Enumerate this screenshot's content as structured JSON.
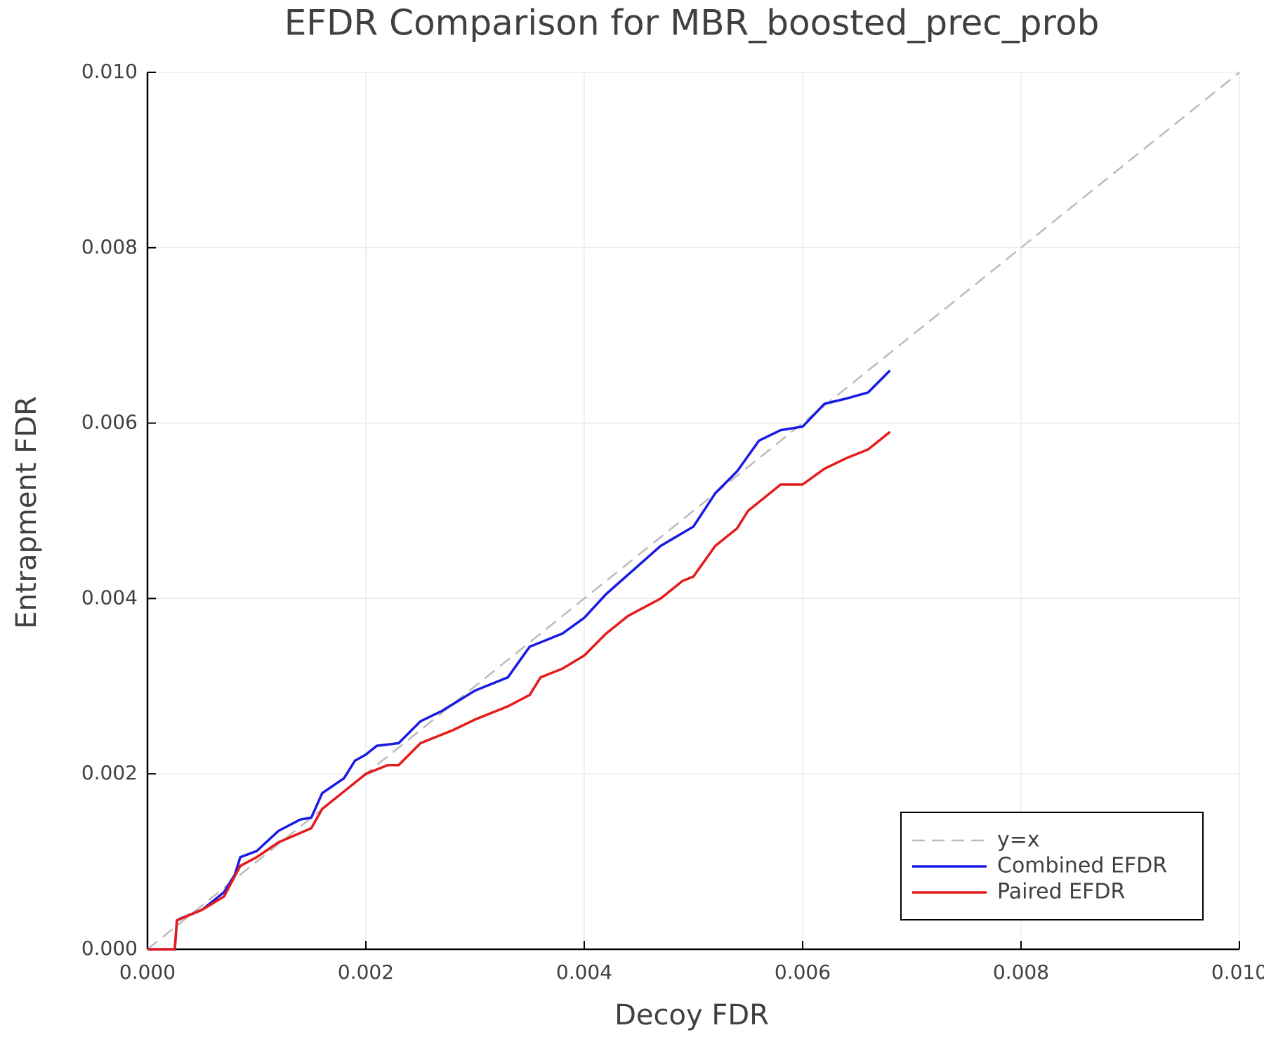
{
  "chart_data": {
    "type": "line",
    "title": "EFDR Comparison for MBR_boosted_prec_prob",
    "x_label": "Decoy FDR",
    "y_label": "Entrapment FDR",
    "xlim": [
      0,
      0.01
    ],
    "ylim": [
      0,
      0.01
    ],
    "xticks": [
      {
        "value": 0,
        "label": "0.000"
      },
      {
        "value": 0.002,
        "label": "0.002"
      },
      {
        "value": 0.004,
        "label": "0.004"
      },
      {
        "value": 0.006,
        "label": "0.006"
      },
      {
        "value": 0.008,
        "label": "0.008"
      },
      {
        "value": 0.01,
        "label": "0.010"
      }
    ],
    "yticks": [
      {
        "value": 0,
        "label": "0.000"
      },
      {
        "value": 0.002,
        "label": "0.002"
      },
      {
        "value": 0.004,
        "label": "0.004"
      },
      {
        "value": 0.006,
        "label": "0.006"
      },
      {
        "value": 0.008,
        "label": "0.008"
      },
      {
        "value": 0.01,
        "label": "0.010"
      }
    ],
    "grid": true,
    "legend": "lower right",
    "series": [
      {
        "name": "y=x",
        "color": "#bbbbbb",
        "dashed": true,
        "x": [
          0,
          0.01
        ],
        "values": [
          0,
          0.01
        ]
      },
      {
        "name": "Combined EFDR",
        "color": "#1a1ae6",
        "dashed": false,
        "x": [
          0,
          0.00025,
          0.00027,
          0.0003,
          0.0005,
          0.0006,
          0.0007,
          0.0008,
          0.00085,
          0.001,
          0.0012,
          0.0014,
          0.0015,
          0.0016,
          0.0018,
          0.0019,
          0.002,
          0.0021,
          0.0023,
          0.0025,
          0.0027,
          0.003,
          0.0033,
          0.0035,
          0.0038,
          0.004,
          0.0042,
          0.0045,
          0.0047,
          0.005,
          0.0052,
          0.0054,
          0.0056,
          0.0058,
          0.006,
          0.0062,
          0.0064,
          0.0066,
          0.0068
        ],
        "values": [
          0,
          0,
          0.00033,
          0.00035,
          0.00045,
          0.00055,
          0.00065,
          0.00085,
          0.00105,
          0.00112,
          0.00135,
          0.00148,
          0.0015,
          0.00178,
          0.00195,
          0.00215,
          0.00222,
          0.00232,
          0.00235,
          0.0026,
          0.00272,
          0.00295,
          0.0031,
          0.00345,
          0.0036,
          0.00378,
          0.00405,
          0.00438,
          0.0046,
          0.00482,
          0.0052,
          0.00545,
          0.0058,
          0.00592,
          0.00596,
          0.00622,
          0.00628,
          0.00635,
          0.0066
        ]
      },
      {
        "name": "Paired EFDR",
        "color": "#e61a1a",
        "dashed": false,
        "x": [
          0,
          0.00025,
          0.00027,
          0.0005,
          0.0007,
          0.00085,
          0.001,
          0.0012,
          0.0015,
          0.0016,
          0.0018,
          0.002,
          0.0022,
          0.0023,
          0.0025,
          0.0028,
          0.003,
          0.0033,
          0.0035,
          0.0036,
          0.0038,
          0.004,
          0.0042,
          0.0044,
          0.0047,
          0.0049,
          0.005,
          0.0052,
          0.0054,
          0.0055,
          0.0058,
          0.006,
          0.0062,
          0.0064,
          0.0066,
          0.0068
        ],
        "values": [
          0,
          0,
          0.00033,
          0.00045,
          0.0006,
          0.00095,
          0.00105,
          0.00122,
          0.00138,
          0.0016,
          0.0018,
          0.002,
          0.0021,
          0.0021,
          0.00235,
          0.0025,
          0.00262,
          0.00277,
          0.0029,
          0.0031,
          0.0032,
          0.00335,
          0.0036,
          0.0038,
          0.004,
          0.0042,
          0.00425,
          0.0046,
          0.0048,
          0.005,
          0.0053,
          0.0053,
          0.00548,
          0.0056,
          0.0057,
          0.0059
        ]
      }
    ]
  }
}
